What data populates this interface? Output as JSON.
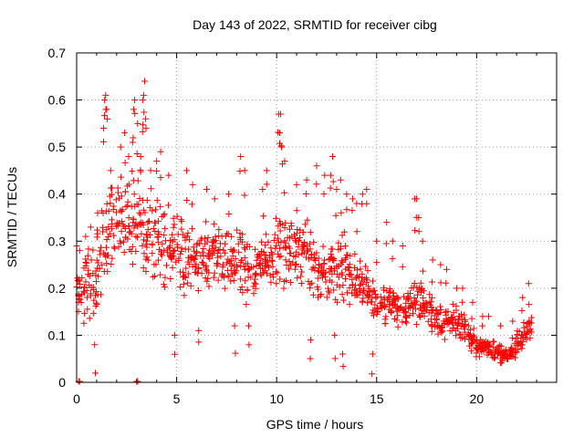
{
  "chart_data": {
    "type": "scatter",
    "title": "Day 143 of 2022, SRMTID for receiver cibg",
    "xlabel": "GPS time / hours",
    "ylabel": "SRMTID / TECUs",
    "xlim": [
      0,
      24
    ],
    "ylim": [
      0,
      0.7
    ],
    "x_ticks": [
      0,
      5,
      10,
      15,
      20
    ],
    "y_ticks": [
      0,
      0.1,
      0.2,
      0.3,
      0.4,
      0.5,
      0.6,
      0.7
    ],
    "x_tick_labels": [
      "0",
      "5",
      "10",
      "15",
      "20"
    ],
    "y_tick_labels": [
      "0",
      "0.1",
      "0.2",
      "0.3",
      "0.4",
      "0.5",
      "0.6",
      "0.7"
    ],
    "grid": true,
    "marker": "plus",
    "series_color": "#ff0000",
    "envelope": [
      [
        0.0,
        0.1,
        0.26
      ],
      [
        0.25,
        0.1,
        0.27
      ],
      [
        0.5,
        0.12,
        0.3
      ],
      [
        0.75,
        0.09,
        0.32
      ],
      [
        1.0,
        0.12,
        0.34
      ],
      [
        1.25,
        0.17,
        0.4
      ],
      [
        1.5,
        0.2,
        0.44
      ],
      [
        1.75,
        0.22,
        0.42
      ],
      [
        2.0,
        0.23,
        0.45
      ],
      [
        2.25,
        0.23,
        0.46
      ],
      [
        2.5,
        0.22,
        0.48
      ],
      [
        2.75,
        0.22,
        0.44
      ],
      [
        3.0,
        0.22,
        0.45
      ],
      [
        3.25,
        0.23,
        0.46
      ],
      [
        3.5,
        0.22,
        0.44
      ],
      [
        3.75,
        0.2,
        0.4
      ],
      [
        4.0,
        0.2,
        0.42
      ],
      [
        4.25,
        0.19,
        0.4
      ],
      [
        4.5,
        0.18,
        0.38
      ],
      [
        4.75,
        0.18,
        0.37
      ],
      [
        5.0,
        0.18,
        0.38
      ],
      [
        5.25,
        0.17,
        0.38
      ],
      [
        5.5,
        0.18,
        0.36
      ],
      [
        5.75,
        0.18,
        0.34
      ],
      [
        6.0,
        0.19,
        0.33
      ],
      [
        6.25,
        0.18,
        0.33
      ],
      [
        6.5,
        0.19,
        0.33
      ],
      [
        6.75,
        0.2,
        0.34
      ],
      [
        7.0,
        0.2,
        0.34
      ],
      [
        7.25,
        0.2,
        0.35
      ],
      [
        7.5,
        0.19,
        0.34
      ],
      [
        7.75,
        0.18,
        0.34
      ],
      [
        8.0,
        0.18,
        0.36
      ],
      [
        8.25,
        0.16,
        0.36
      ],
      [
        8.5,
        0.16,
        0.33
      ],
      [
        8.75,
        0.17,
        0.31
      ],
      [
        9.0,
        0.17,
        0.31
      ],
      [
        9.25,
        0.18,
        0.32
      ],
      [
        9.5,
        0.19,
        0.33
      ],
      [
        9.75,
        0.18,
        0.33
      ],
      [
        10.0,
        0.2,
        0.38
      ],
      [
        10.25,
        0.19,
        0.4
      ],
      [
        10.5,
        0.19,
        0.38
      ],
      [
        10.75,
        0.2,
        0.36
      ],
      [
        11.0,
        0.2,
        0.35
      ],
      [
        11.25,
        0.19,
        0.34
      ],
      [
        11.5,
        0.18,
        0.35
      ],
      [
        11.75,
        0.17,
        0.34
      ],
      [
        12.0,
        0.16,
        0.32
      ],
      [
        12.25,
        0.16,
        0.31
      ],
      [
        12.5,
        0.16,
        0.3
      ],
      [
        12.75,
        0.17,
        0.32
      ],
      [
        13.0,
        0.16,
        0.33
      ],
      [
        13.25,
        0.16,
        0.33
      ],
      [
        13.5,
        0.15,
        0.32
      ],
      [
        13.75,
        0.14,
        0.3
      ],
      [
        14.0,
        0.13,
        0.3
      ],
      [
        14.25,
        0.13,
        0.28
      ],
      [
        14.5,
        0.13,
        0.26
      ],
      [
        14.75,
        0.12,
        0.24
      ],
      [
        15.0,
        0.12,
        0.23
      ],
      [
        15.25,
        0.12,
        0.22
      ],
      [
        15.5,
        0.11,
        0.21
      ],
      [
        15.75,
        0.11,
        0.21
      ],
      [
        16.0,
        0.11,
        0.21
      ],
      [
        16.25,
        0.11,
        0.2
      ],
      [
        16.5,
        0.11,
        0.21
      ],
      [
        16.75,
        0.11,
        0.22
      ],
      [
        17.0,
        0.11,
        0.22
      ],
      [
        17.25,
        0.12,
        0.22
      ],
      [
        17.5,
        0.11,
        0.21
      ],
      [
        17.75,
        0.1,
        0.19
      ],
      [
        18.0,
        0.09,
        0.17
      ],
      [
        18.25,
        0.08,
        0.17
      ],
      [
        18.5,
        0.08,
        0.17
      ],
      [
        18.75,
        0.08,
        0.18
      ],
      [
        19.0,
        0.08,
        0.17
      ],
      [
        19.25,
        0.08,
        0.15
      ],
      [
        19.5,
        0.08,
        0.15
      ],
      [
        19.75,
        0.06,
        0.13
      ],
      [
        20.0,
        0.05,
        0.11
      ],
      [
        20.25,
        0.05,
        0.1
      ],
      [
        20.5,
        0.05,
        0.1
      ],
      [
        20.75,
        0.05,
        0.1
      ],
      [
        21.0,
        0.04,
        0.09
      ],
      [
        21.25,
        0.04,
        0.08
      ],
      [
        21.5,
        0.04,
        0.07
      ],
      [
        21.75,
        0.04,
        0.08
      ],
      [
        22.0,
        0.05,
        0.11
      ],
      [
        22.25,
        0.06,
        0.14
      ],
      [
        22.5,
        0.08,
        0.15
      ],
      [
        22.75,
        0.09,
        0.15
      ]
    ],
    "spikes": [
      [
        0.0,
        0.29
      ],
      [
        0.15,
        0.28
      ],
      [
        0.45,
        0.31
      ],
      [
        0.7,
        0.33
      ],
      [
        0.9,
        0.08
      ],
      [
        1.05,
        0.36
      ],
      [
        1.35,
        0.54
      ],
      [
        1.4,
        0.6
      ],
      [
        1.45,
        0.61
      ],
      [
        1.5,
        0.58
      ],
      [
        1.7,
        0.45
      ],
      [
        2.2,
        0.5
      ],
      [
        2.4,
        0.53
      ],
      [
        2.6,
        0.48
      ],
      [
        2.8,
        0.51
      ],
      [
        2.85,
        0.58
      ],
      [
        2.9,
        0.6
      ],
      [
        3.05,
        0.55
      ],
      [
        3.2,
        0.48
      ],
      [
        3.3,
        0.6
      ],
      [
        3.35,
        0.61
      ],
      [
        3.4,
        0.64
      ],
      [
        3.45,
        0.56
      ],
      [
        3.7,
        0.45
      ],
      [
        4.0,
        0.47
      ],
      [
        4.2,
        0.49
      ],
      [
        4.6,
        0.44
      ],
      [
        5.5,
        0.45
      ],
      [
        5.8,
        0.42
      ],
      [
        6.5,
        0.41
      ],
      [
        6.9,
        0.39
      ],
      [
        7.6,
        0.4
      ],
      [
        8.2,
        0.48
      ],
      [
        8.4,
        0.45
      ],
      [
        8.6,
        0.12
      ],
      [
        9.3,
        0.41
      ],
      [
        9.5,
        0.45
      ],
      [
        10.1,
        0.57
      ],
      [
        10.15,
        0.53
      ],
      [
        10.2,
        0.57
      ],
      [
        10.25,
        0.5
      ],
      [
        10.4,
        0.47
      ],
      [
        11.0,
        0.42
      ],
      [
        11.5,
        0.43
      ],
      [
        12.0,
        0.46
      ],
      [
        12.4,
        0.44
      ],
      [
        12.7,
        0.44
      ],
      [
        12.8,
        0.48
      ],
      [
        13.0,
        0.41
      ],
      [
        13.2,
        0.43
      ],
      [
        13.5,
        0.4
      ],
      [
        13.8,
        0.39
      ],
      [
        14.0,
        0.38
      ],
      [
        14.3,
        0.4
      ],
      [
        14.5,
        0.41
      ],
      [
        15.0,
        0.3
      ],
      [
        15.5,
        0.34
      ],
      [
        15.8,
        0.3
      ],
      [
        16.3,
        0.29
      ],
      [
        16.9,
        0.39
      ],
      [
        17.0,
        0.39
      ],
      [
        17.1,
        0.35
      ],
      [
        17.3,
        0.3
      ],
      [
        17.8,
        0.26
      ],
      [
        18.2,
        0.25
      ],
      [
        18.5,
        0.24
      ],
      [
        19.0,
        0.2
      ],
      [
        19.3,
        0.2
      ],
      [
        19.8,
        0.17
      ],
      [
        20.3,
        0.14
      ],
      [
        20.6,
        0.14
      ],
      [
        21.2,
        0.12
      ],
      [
        21.8,
        0.13
      ],
      [
        22.3,
        0.18
      ],
      [
        22.6,
        0.21
      ],
      [
        14.8,
        0.06
      ],
      [
        13.3,
        0.06
      ],
      [
        6.1,
        0.11
      ],
      [
        4.9,
        0.1
      ],
      [
        7.9,
        0.12
      ],
      [
        11.7,
        0.09
      ],
      [
        12.9,
        0.1
      ]
    ],
    "zero_points": [
      0.1,
      0.15,
      3.0,
      3.05
    ]
  }
}
